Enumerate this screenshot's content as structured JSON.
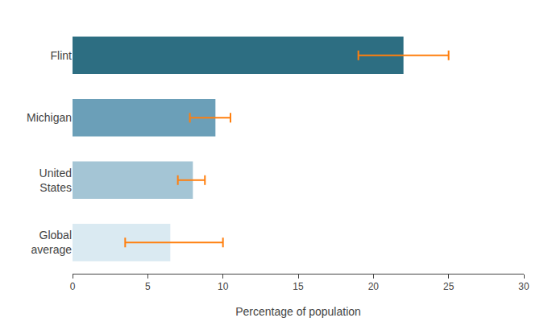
{
  "chart_data": {
    "type": "bar",
    "orientation": "horizontal",
    "categories": [
      "Flint",
      "Michigan",
      "United\nStates",
      "Global\naverage"
    ],
    "values": [
      22.0,
      9.5,
      8.0,
      6.5
    ],
    "colors": [
      "#2d6e82",
      "#6b9fb8",
      "#a4c5d5",
      "#daeaf2"
    ],
    "error_centers": [
      21.5,
      9.0,
      7.8,
      6.0
    ],
    "xerr_low": [
      2.5,
      1.2,
      0.8,
      2.5
    ],
    "xerr_high": [
      3.5,
      1.5,
      1.0,
      4.0
    ],
    "xlabel": "Percentage of population",
    "xlim": [
      0,
      30
    ],
    "xticks": [
      0,
      5,
      10,
      15,
      20,
      25,
      30
    ],
    "grid": false
  }
}
